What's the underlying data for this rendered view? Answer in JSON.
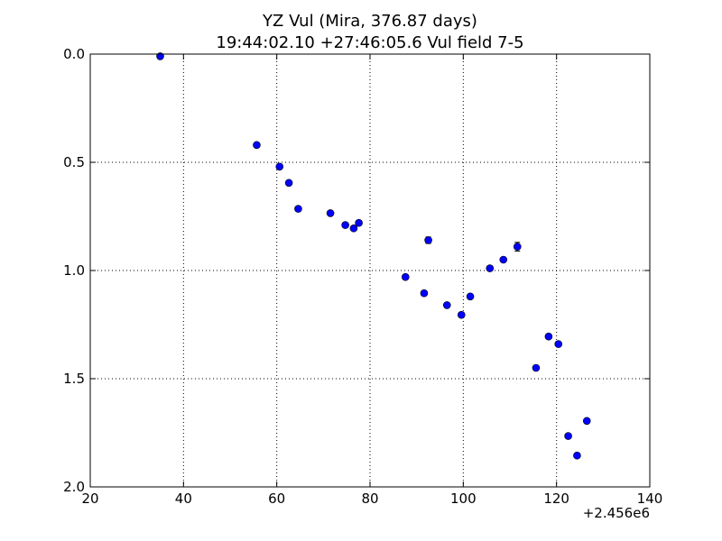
{
  "chart_data": {
    "type": "scatter",
    "title": "YZ Vul (Mira, 376.87 days)",
    "subtitle": "19:44:02.10 +27:46:05.6 Vul field 7-5",
    "xlabel": "",
    "ylabel": "",
    "x_offset_label": "+2.456e6",
    "xlim": [
      20,
      140
    ],
    "ylim": [
      2.0,
      0.0
    ],
    "y_inverted": true,
    "x_ticks": [
      20,
      40,
      60,
      80,
      100,
      120,
      140
    ],
    "x_tick_labels": [
      "20",
      "40",
      "60",
      "80",
      "100",
      "120",
      "140"
    ],
    "y_ticks": [
      0.0,
      0.5,
      1.0,
      1.5,
      2.0
    ],
    "y_tick_labels": [
      "0.0",
      "0.5",
      "1.0",
      "1.5",
      "2.0"
    ],
    "grid": true,
    "marker_color": "#0000ff",
    "series": [
      {
        "points": [
          {
            "x": 35.0,
            "y": 0.01,
            "err": 0.0
          },
          {
            "x": 55.7,
            "y": 0.42,
            "err": 0.0
          },
          {
            "x": 60.6,
            "y": 0.52,
            "err": 0.0
          },
          {
            "x": 62.6,
            "y": 0.595,
            "err": 0.0
          },
          {
            "x": 64.6,
            "y": 0.715,
            "err": 0.0
          },
          {
            "x": 71.5,
            "y": 0.735,
            "err": 0.0
          },
          {
            "x": 74.7,
            "y": 0.79,
            "err": 0.0
          },
          {
            "x": 76.5,
            "y": 0.805,
            "err": 0.0
          },
          {
            "x": 77.6,
            "y": 0.78,
            "err": 0.0
          },
          {
            "x": 87.6,
            "y": 1.03,
            "err": 0.0
          },
          {
            "x": 91.6,
            "y": 1.105,
            "err": 0.0
          },
          {
            "x": 92.5,
            "y": 0.86,
            "err": 0.015
          },
          {
            "x": 96.5,
            "y": 1.16,
            "err": 0.0
          },
          {
            "x": 99.6,
            "y": 1.205,
            "err": 0.0
          },
          {
            "x": 101.5,
            "y": 1.12,
            "err": 0.0
          },
          {
            "x": 105.7,
            "y": 0.99,
            "err": 0.0
          },
          {
            "x": 108.6,
            "y": 0.95,
            "err": 0.0
          },
          {
            "x": 111.6,
            "y": 0.89,
            "err": 0.02
          },
          {
            "x": 115.6,
            "y": 1.45,
            "err": 0.0
          },
          {
            "x": 118.3,
            "y": 1.305,
            "err": 0.0
          },
          {
            "x": 120.4,
            "y": 1.34,
            "err": 0.0
          },
          {
            "x": 122.5,
            "y": 1.765,
            "err": 0.0
          },
          {
            "x": 124.4,
            "y": 1.855,
            "err": 0.0
          },
          {
            "x": 126.5,
            "y": 1.695,
            "err": 0.0
          }
        ]
      }
    ]
  }
}
